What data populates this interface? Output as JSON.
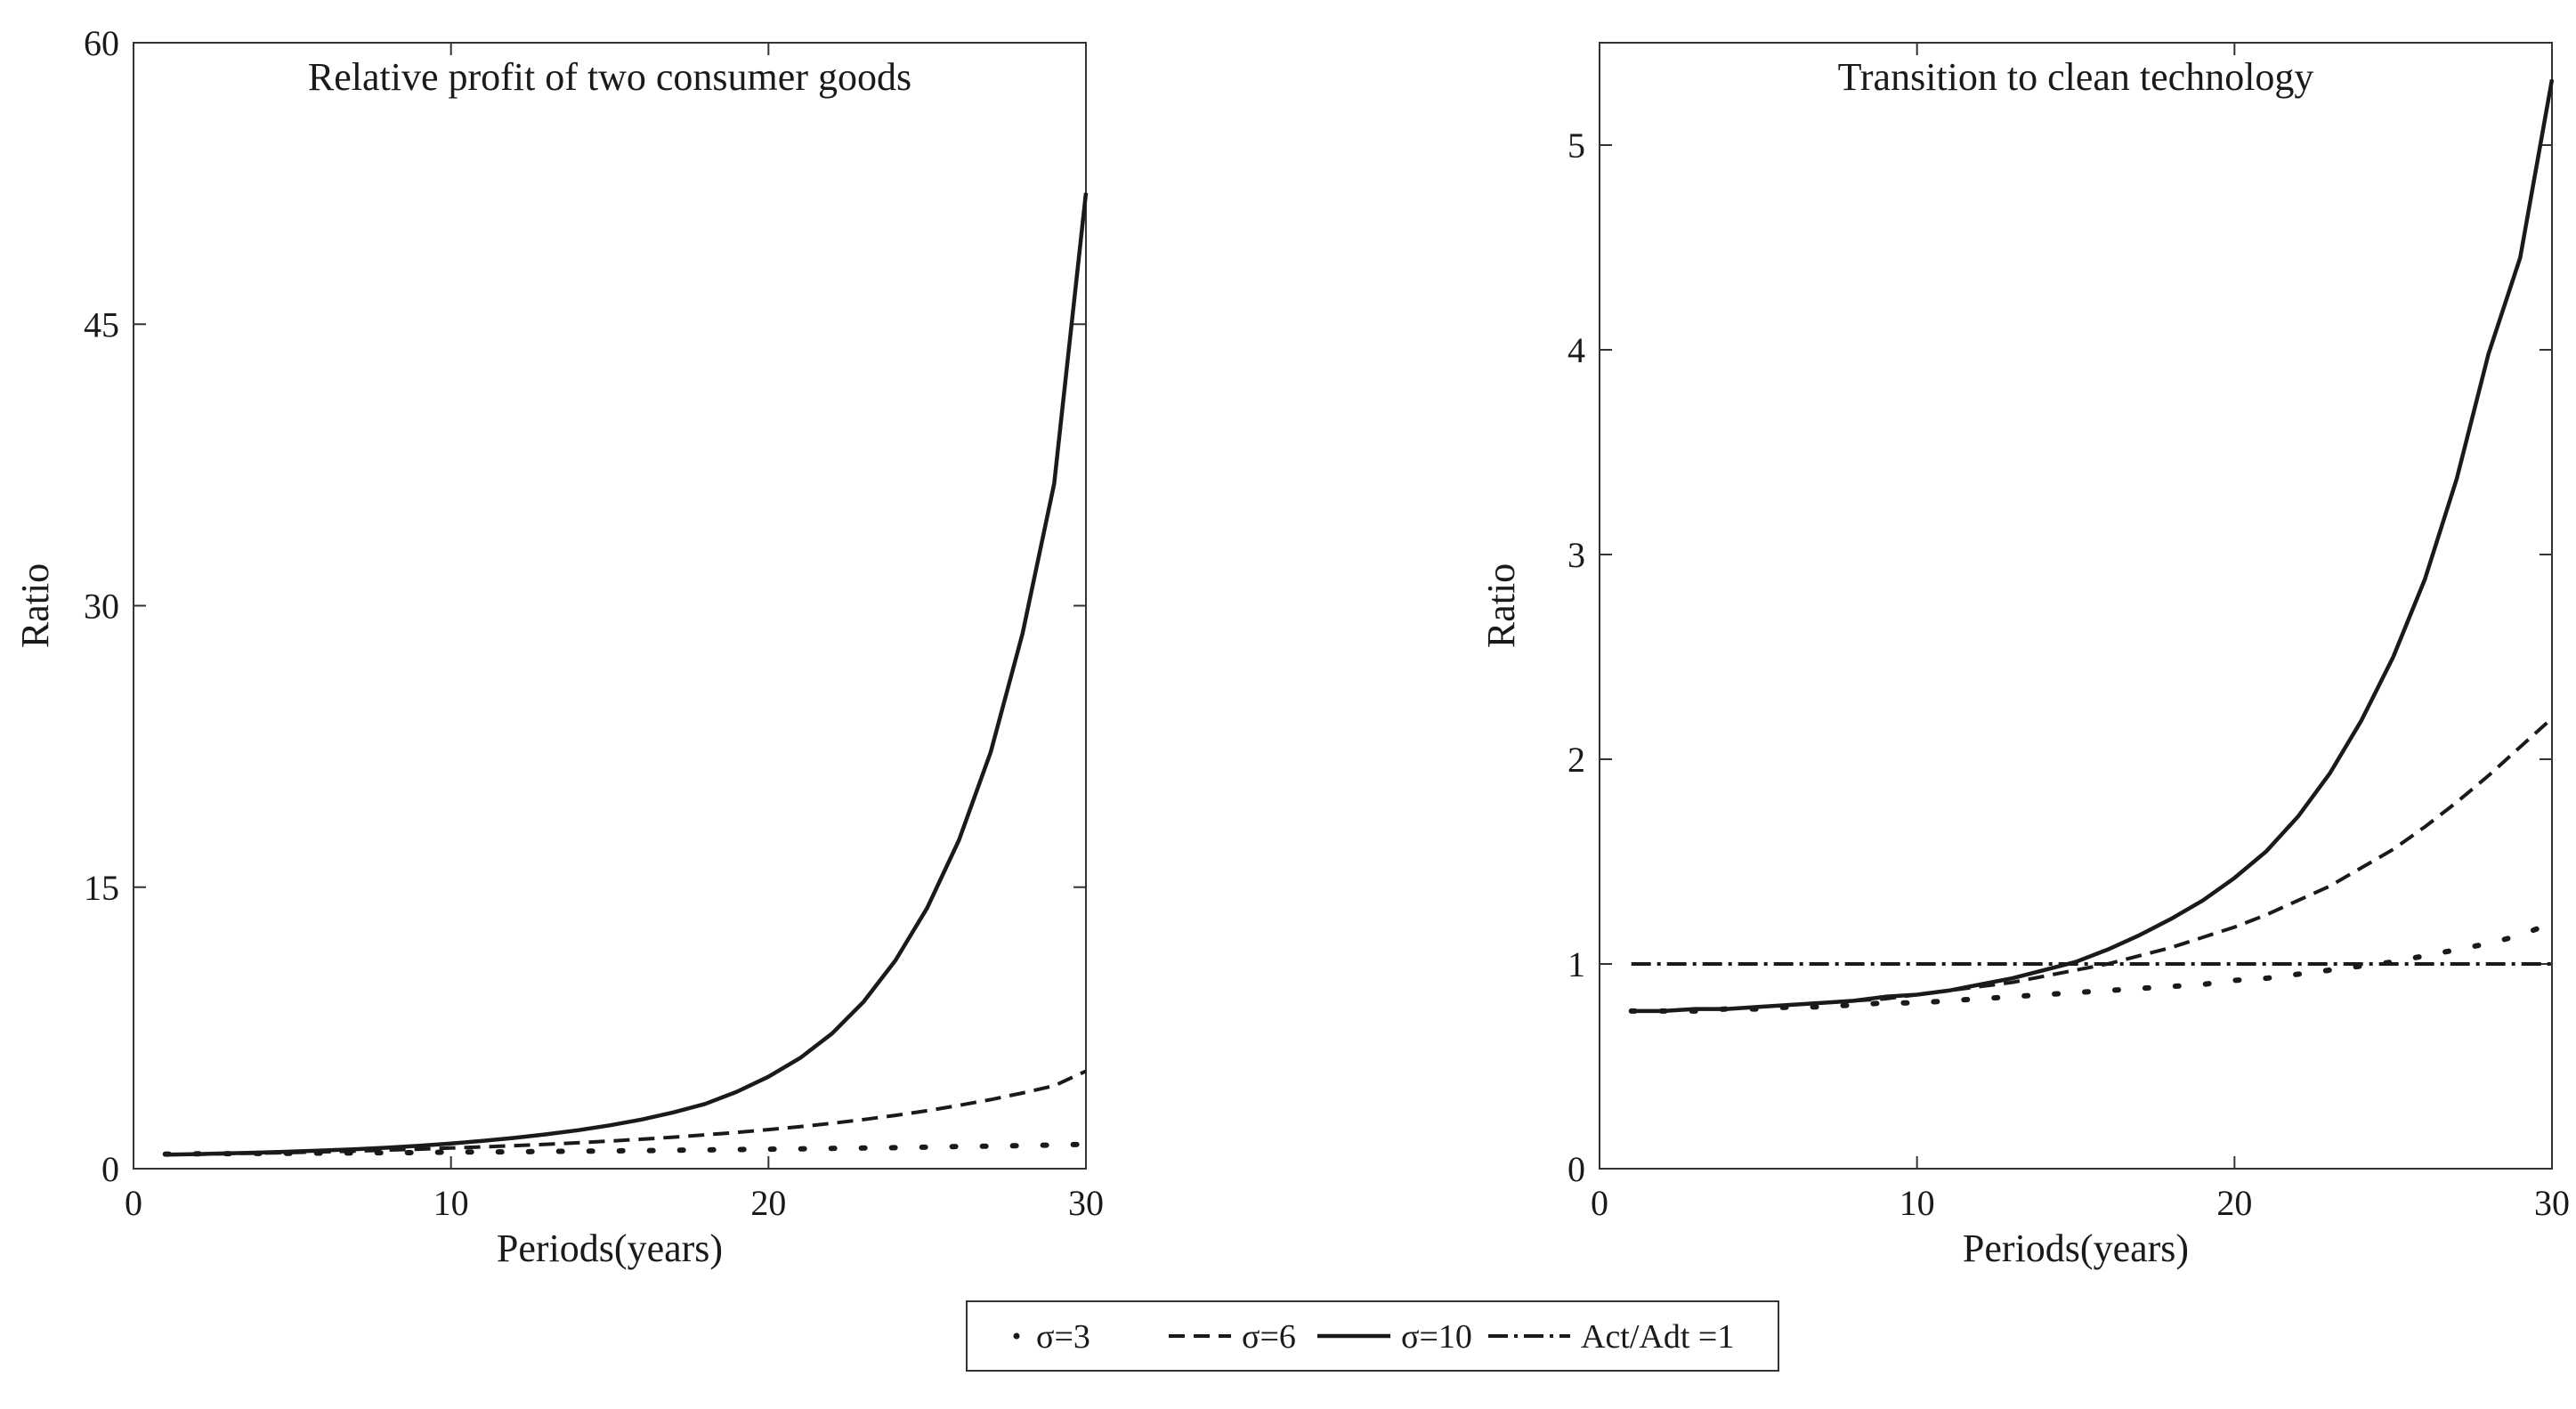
{
  "chart_data": [
    {
      "type": "line",
      "title": "Relative profit of two consumer goods",
      "xlabel": "Periods(years)",
      "ylabel": "Ratio",
      "xlim": [
        0,
        30
      ],
      "ylim": [
        0,
        60
      ],
      "xticks": [
        "0",
        "10",
        "20",
        "30"
      ],
      "yticks": [
        "0",
        "15",
        "30",
        "45",
        "60"
      ],
      "grid": false,
      "x": [
        1,
        2,
        3,
        4,
        5,
        6,
        7,
        8,
        9,
        10,
        11,
        12,
        13,
        14,
        15,
        16,
        17,
        18,
        19,
        20,
        21,
        22,
        23,
        24,
        25,
        26,
        27,
        28,
        29,
        30
      ],
      "series": [
        {
          "name": "σ=3",
          "style": "dotted",
          "values": [
            0.78,
            0.79,
            0.8,
            0.81,
            0.82,
            0.83,
            0.84,
            0.85,
            0.86,
            0.88,
            0.89,
            0.9,
            0.92,
            0.93,
            0.95,
            0.96,
            0.98,
            1.0,
            1.02,
            1.04,
            1.06,
            1.08,
            1.1,
            1.12,
            1.15,
            1.18,
            1.2,
            1.23,
            1.26,
            1.3
          ]
        },
        {
          "name": "σ=6",
          "style": "dashed",
          "values": [
            0.75,
            0.77,
            0.8,
            0.83,
            0.86,
            0.9,
            0.94,
            0.99,
            1.04,
            1.1,
            1.16,
            1.23,
            1.3,
            1.38,
            1.47,
            1.57,
            1.68,
            1.8,
            1.93,
            2.08,
            2.24,
            2.42,
            2.62,
            2.84,
            3.09,
            3.37,
            3.68,
            4.03,
            4.42,
            5.2
          ]
        },
        {
          "name": "σ=10",
          "style": "solid",
          "values": [
            0.75,
            0.78,
            0.82,
            0.86,
            0.91,
            0.97,
            1.04,
            1.12,
            1.22,
            1.34,
            1.48,
            1.64,
            1.83,
            2.05,
            2.31,
            2.62,
            3.0,
            3.45,
            4.1,
            4.9,
            5.9,
            7.2,
            8.9,
            11.1,
            13.9,
            17.5,
            22.2,
            28.5,
            36.5,
            52.0
          ]
        }
      ]
    },
    {
      "type": "line",
      "title": "Transition to clean technology",
      "xlabel": "Periods(years)",
      "ylabel": "Ratio",
      "xlim": [
        0,
        30
      ],
      "ylim": [
        0,
        5.5
      ],
      "xticks": [
        "0",
        "10",
        "20",
        "30"
      ],
      "yticks": [
        "0",
        "1",
        "2",
        "3",
        "4",
        "5"
      ],
      "grid": false,
      "x": [
        1,
        2,
        3,
        4,
        5,
        6,
        7,
        8,
        9,
        10,
        11,
        12,
        13,
        14,
        15,
        16,
        17,
        18,
        19,
        20,
        21,
        22,
        23,
        24,
        25,
        26,
        27,
        28,
        29,
        30
      ],
      "series": [
        {
          "name": "σ=3",
          "style": "dotted",
          "values": [
            0.77,
            0.77,
            0.77,
            0.78,
            0.78,
            0.79,
            0.79,
            0.8,
            0.81,
            0.81,
            0.82,
            0.83,
            0.84,
            0.85,
            0.86,
            0.87,
            0.88,
            0.89,
            0.9,
            0.92,
            0.93,
            0.95,
            0.97,
            0.99,
            1.01,
            1.04,
            1.07,
            1.1,
            1.14,
            1.2
          ]
        },
        {
          "name": "σ=6",
          "style": "dashed",
          "values": [
            0.77,
            0.77,
            0.78,
            0.78,
            0.79,
            0.8,
            0.81,
            0.82,
            0.83,
            0.85,
            0.87,
            0.89,
            0.91,
            0.94,
            0.97,
            1.0,
            1.04,
            1.08,
            1.13,
            1.18,
            1.24,
            1.31,
            1.38,
            1.47,
            1.56,
            1.67,
            1.79,
            1.92,
            2.06,
            2.2
          ]
        },
        {
          "name": "σ=10",
          "style": "solid",
          "values": [
            0.77,
            0.77,
            0.78,
            0.78,
            0.79,
            0.8,
            0.81,
            0.82,
            0.84,
            0.85,
            0.87,
            0.9,
            0.93,
            0.97,
            1.01,
            1.07,
            1.14,
            1.22,
            1.31,
            1.42,
            1.55,
            1.72,
            1.93,
            2.19,
            2.5,
            2.88,
            3.37,
            3.98,
            4.45,
            5.32
          ]
        },
        {
          "name": "Act/Adt =1",
          "style": "dashdot",
          "values": [
            1,
            1,
            1,
            1,
            1,
            1,
            1,
            1,
            1,
            1,
            1,
            1,
            1,
            1,
            1,
            1,
            1,
            1,
            1,
            1,
            1,
            1,
            1,
            1,
            1,
            1,
            1,
            1,
            1,
            1
          ]
        }
      ]
    }
  ],
  "legend": {
    "placement": "bottom-center",
    "entries": [
      {
        "label": "σ=3",
        "style": "dotted"
      },
      {
        "label": "σ=6",
        "style": "dashed"
      },
      {
        "label": "σ=10",
        "style": "solid"
      },
      {
        "label": "Act/Adt =1",
        "style": "dashdot"
      }
    ]
  },
  "colors": {
    "line": "#1a1a1a",
    "axis": "#333333",
    "background": "#ffffff"
  }
}
